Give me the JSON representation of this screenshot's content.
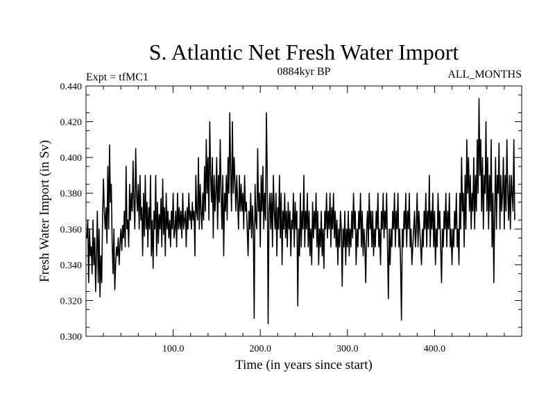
{
  "chart_data": {
    "type": "line",
    "title": "S. Atlantic Net Fresh Water Import",
    "subtitle": "0884kyr BP",
    "left_note": "Expt = tfMC1",
    "right_note": "ALL_MONTHS",
    "xlabel": "Time (in years since start)",
    "ylabel": "Fresh Water Import (in Sv)",
    "xlim": [
      0,
      500
    ],
    "ylim": [
      0.3,
      0.44
    ],
    "x_ticks": [
      100,
      200,
      300,
      400
    ],
    "x_tick_labels": [
      "100.0",
      "200.0",
      "300.0",
      "400.0"
    ],
    "y_ticks": [
      0.3,
      0.32,
      0.34,
      0.36,
      0.38,
      0.4,
      0.42,
      0.44
    ],
    "y_tick_labels": [
      "0.300",
      "0.320",
      "0.340",
      "0.360",
      "0.380",
      "0.400",
      "0.420",
      "0.440"
    ],
    "series": [
      {
        "name": "Net Fresh Water Import",
        "x_start": 1,
        "x_step": 1,
        "values": [
          0.355,
          0.365,
          0.33,
          0.36,
          0.345,
          0.35,
          0.335,
          0.365,
          0.34,
          0.355,
          0.325,
          0.345,
          0.37,
          0.33,
          0.36,
          0.322,
          0.345,
          0.33,
          0.367,
          0.388,
          0.37,
          0.36,
          0.372,
          0.352,
          0.395,
          0.36,
          0.407,
          0.375,
          0.385,
          0.352,
          0.335,
          0.36,
          0.326,
          0.34,
          0.35,
          0.345,
          0.355,
          0.34,
          0.352,
          0.36,
          0.348,
          0.362,
          0.355,
          0.37,
          0.35,
          0.395,
          0.36,
          0.365,
          0.35,
          0.385,
          0.365,
          0.38,
          0.37,
          0.398,
          0.375,
          0.36,
          0.405,
          0.38,
          0.37,
          0.385,
          0.36,
          0.39,
          0.365,
          0.372,
          0.345,
          0.38,
          0.356,
          0.39,
          0.36,
          0.375,
          0.35,
          0.372,
          0.36,
          0.39,
          0.345,
          0.365,
          0.338,
          0.37,
          0.36,
          0.39,
          0.345,
          0.375,
          0.352,
          0.368,
          0.36,
          0.377,
          0.35,
          0.388,
          0.357,
          0.372,
          0.345,
          0.38,
          0.36,
          0.37,
          0.355,
          0.365,
          0.35,
          0.37,
          0.36,
          0.38,
          0.355,
          0.36,
          0.37,
          0.35,
          0.38,
          0.36,
          0.372,
          0.36,
          0.37,
          0.355,
          0.38,
          0.36,
          0.365,
          0.37,
          0.35,
          0.372,
          0.36,
          0.38,
          0.365,
          0.37,
          0.36,
          0.375,
          0.365,
          0.37,
          0.345,
          0.39,
          0.37,
          0.365,
          0.4,
          0.36,
          0.385,
          0.37,
          0.36,
          0.38,
          0.365,
          0.395,
          0.37,
          0.41,
          0.38,
          0.4,
          0.365,
          0.42,
          0.39,
          0.375,
          0.4,
          0.355,
          0.39,
          0.37,
          0.38,
          0.4,
          0.36,
          0.39,
          0.375,
          0.41,
          0.38,
          0.36,
          0.39,
          0.345,
          0.38,
          0.37,
          0.39,
          0.365,
          0.4,
          0.38,
          0.425,
          0.39,
          0.37,
          0.42,
          0.38,
          0.4,
          0.385,
          0.37,
          0.39,
          0.375,
          0.36,
          0.39,
          0.37,
          0.385,
          0.37,
          0.38,
          0.36,
          0.39,
          0.37,
          0.375,
          0.36,
          0.345,
          0.37,
          0.36,
          0.38,
          0.355,
          0.373,
          0.36,
          0.31,
          0.385,
          0.365,
          0.36,
          0.405,
          0.37,
          0.38,
          0.35,
          0.39,
          0.37,
          0.395,
          0.36,
          0.38,
          0.365,
          0.425,
          0.39,
          0.307,
          0.37,
          0.38,
          0.36,
          0.38,
          0.35,
          0.39,
          0.37,
          0.36,
          0.38,
          0.345,
          0.372,
          0.36,
          0.39,
          0.355,
          0.38,
          0.34,
          0.37,
          0.36,
          0.38,
          0.355,
          0.37,
          0.35,
          0.375,
          0.36,
          0.37,
          0.345,
          0.365,
          0.36,
          0.38,
          0.35,
          0.375,
          0.36,
          0.37,
          0.317,
          0.36,
          0.345,
          0.38,
          0.35,
          0.37,
          0.36,
          0.39,
          0.35,
          0.37,
          0.36,
          0.38,
          0.35,
          0.37,
          0.345,
          0.36,
          0.34,
          0.375,
          0.355,
          0.37,
          0.36,
          0.38,
          0.35,
          0.37,
          0.34,
          0.36,
          0.35,
          0.37,
          0.345,
          0.36,
          0.338,
          0.37,
          0.36,
          0.38,
          0.355,
          0.37,
          0.36,
          0.38,
          0.35,
          0.372,
          0.36,
          0.38,
          0.355,
          0.37,
          0.35,
          0.365,
          0.34,
          0.36,
          0.35,
          0.37,
          0.36,
          0.328,
          0.36,
          0.35,
          0.37,
          0.34,
          0.36,
          0.35,
          0.37,
          0.345,
          0.36,
          0.35,
          0.37,
          0.355,
          0.38,
          0.36,
          0.37,
          0.34,
          0.36,
          0.35,
          0.37,
          0.36,
          0.38,
          0.35,
          0.37,
          0.345,
          0.36,
          0.35,
          0.33,
          0.36,
          0.37,
          0.35,
          0.38,
          0.36,
          0.37,
          0.35,
          0.37,
          0.345,
          0.36,
          0.35,
          0.37,
          0.36,
          0.38,
          0.35,
          0.36,
          0.34,
          0.37,
          0.36,
          0.38,
          0.355,
          0.37,
          0.36,
          0.38,
          0.35,
          0.321,
          0.36,
          0.34,
          0.36,
          0.35,
          0.37,
          0.36,
          0.38,
          0.35,
          0.37,
          0.36,
          0.38,
          0.35,
          0.36,
          0.34,
          0.309,
          0.36,
          0.35,
          0.37,
          0.36,
          0.38,
          0.35,
          0.37,
          0.36,
          0.38,
          0.35,
          0.36,
          0.34,
          0.35,
          0.36,
          0.37,
          0.35,
          0.36,
          0.38,
          0.35,
          0.37,
          0.36,
          0.35,
          0.34,
          0.36,
          0.35,
          0.37,
          0.36,
          0.38,
          0.35,
          0.37,
          0.36,
          0.39,
          0.35,
          0.37,
          0.36,
          0.38,
          0.35,
          0.37,
          0.34,
          0.36,
          0.35,
          0.38,
          0.36,
          0.37,
          0.35,
          0.33,
          0.36,
          0.35,
          0.37,
          0.36,
          0.38,
          0.35,
          0.37,
          0.36,
          0.38,
          0.35,
          0.36,
          0.34,
          0.36,
          0.35,
          0.37,
          0.36,
          0.38,
          0.35,
          0.36,
          0.34,
          0.38,
          0.36,
          0.4,
          0.37,
          0.38,
          0.35,
          0.39,
          0.36,
          0.41,
          0.38,
          0.4,
          0.37,
          0.39,
          0.36,
          0.38,
          0.37,
          0.4,
          0.36,
          0.39,
          0.37,
          0.41,
          0.38,
          0.433,
          0.39,
          0.41,
          0.37,
          0.4,
          0.36,
          0.39,
          0.38,
          0.42,
          0.37,
          0.4,
          0.36,
          0.39,
          0.37,
          0.41,
          0.35,
          0.38,
          0.33,
          0.37,
          0.4,
          0.36,
          0.39,
          0.38,
          0.408,
          0.36,
          0.39,
          0.37,
          0.38,
          0.4,
          0.36,
          0.39,
          0.37,
          0.41,
          0.38,
          0.365,
          0.39,
          0.36,
          0.39,
          0.38,
          0.37,
          0.41,
          0.365
        ]
      }
    ]
  }
}
